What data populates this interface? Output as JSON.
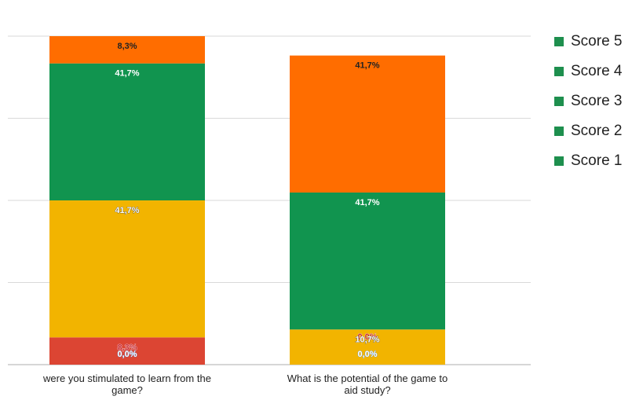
{
  "chart_data": {
    "type": "bar",
    "stacked": true,
    "percent": true,
    "categories": [
      "were you stimulated to learn from the game?",
      "What is the potential of the game to aid study?"
    ],
    "category_lines": [
      [
        "were you stimulated to learn from the",
        "game?"
      ],
      [
        "What is the potential of the game to",
        "aid study?"
      ]
    ],
    "series": [
      {
        "name": "Score 1",
        "values": [
          0.0,
          0.0
        ],
        "labels": [
          "0,0%",
          "0,0%"
        ],
        "color": "#1e8f4e"
      },
      {
        "name": "Score 2",
        "values": [
          8.3,
          0.0
        ],
        "labels": [
          "8,3%",
          "0,0%"
        ],
        "color": "#1e8f4e"
      },
      {
        "name": "Score 3",
        "values": [
          41.7,
          10.7
        ],
        "labels": [
          "41,7%",
          "10,7%"
        ],
        "color": "#1e8f4e"
      },
      {
        "name": "Score 4",
        "values": [
          41.7,
          41.7
        ],
        "labels": [
          "41,7%",
          "41,7%"
        ],
        "color": "#1e8f4e"
      },
      {
        "name": "Score 5",
        "values": [
          8.3,
          41.7
        ],
        "labels": [
          "8,3%",
          "41,7%"
        ],
        "color": "#1e8f4e"
      }
    ],
    "segment_colors": [
      "#4a8fe0",
      "#dc4533",
      "#f2b400",
      "#11944f",
      "#ff6d00"
    ],
    "ylim": [
      0,
      100
    ],
    "grid": true,
    "legend_position": "right"
  }
}
